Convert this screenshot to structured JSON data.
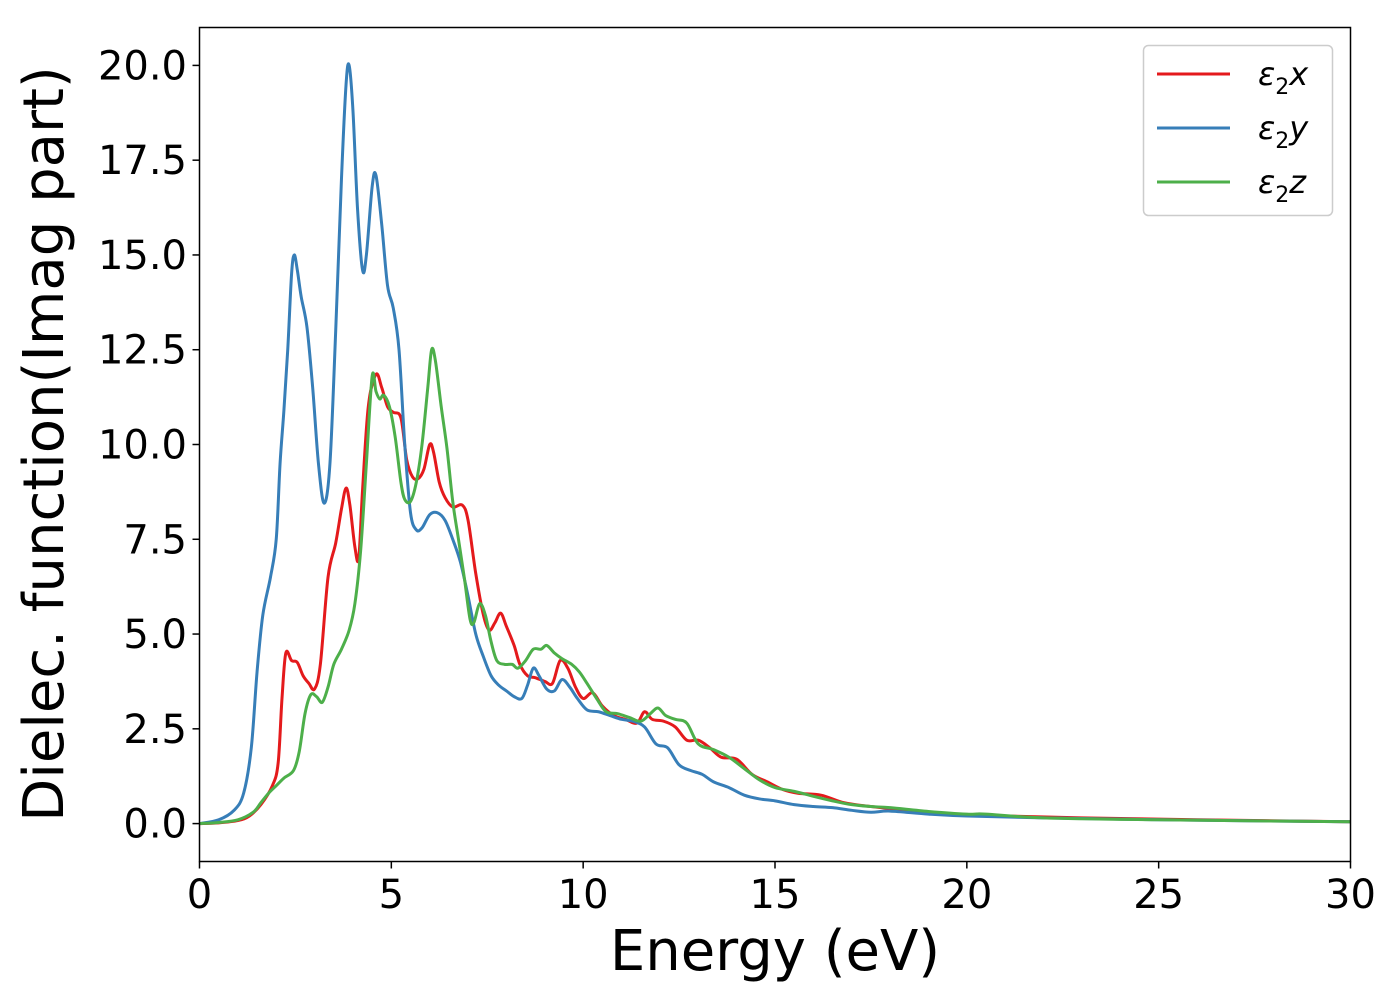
{
  "chart_data": {
    "type": "line",
    "xlabel": "Energy (eV)",
    "ylabel": "Dielec. function(Imag part)",
    "xlim": [
      0,
      30
    ],
    "ylim": [
      -1.0,
      21.0
    ],
    "xticks": [
      "0",
      "5",
      "10",
      "15",
      "20",
      "25",
      "30"
    ],
    "xtick_values": [
      0,
      5,
      10,
      15,
      20,
      25,
      30
    ],
    "yticks": [
      "0.0",
      "2.5",
      "5.0",
      "7.5",
      "10.0",
      "12.5",
      "15.0",
      "17.5",
      "20.0"
    ],
    "ytick_values": [
      0.0,
      2.5,
      5.0,
      7.5,
      10.0,
      12.5,
      15.0,
      17.5,
      20.0
    ],
    "grid": false,
    "legend_position": "top-right",
    "series": [
      {
        "name": "ε₂x",
        "legend_main": "ε",
        "legend_sub": "2",
        "legend_suffix": "x",
        "color": "#e41a1c",
        "points": [
          [
            0,
            0.0
          ],
          [
            0.5,
            0.02
          ],
          [
            1.0,
            0.08
          ],
          [
            1.3,
            0.2
          ],
          [
            1.6,
            0.5
          ],
          [
            1.9,
            1.0
          ],
          [
            2.05,
            1.6
          ],
          [
            2.15,
            3.3
          ],
          [
            2.25,
            4.5
          ],
          [
            2.4,
            4.3
          ],
          [
            2.55,
            4.25
          ],
          [
            2.7,
            3.9
          ],
          [
            2.85,
            3.7
          ],
          [
            3.0,
            3.55
          ],
          [
            3.15,
            4.2
          ],
          [
            3.35,
            6.5
          ],
          [
            3.55,
            7.4
          ],
          [
            3.7,
            8.3
          ],
          [
            3.82,
            8.85
          ],
          [
            3.92,
            8.4
          ],
          [
            4.05,
            7.3
          ],
          [
            4.15,
            7.0
          ],
          [
            4.25,
            8.8
          ],
          [
            4.4,
            11.0
          ],
          [
            4.6,
            11.85
          ],
          [
            4.75,
            11.5
          ],
          [
            4.9,
            11.0
          ],
          [
            5.05,
            10.85
          ],
          [
            5.25,
            10.7
          ],
          [
            5.4,
            9.6
          ],
          [
            5.55,
            9.15
          ],
          [
            5.7,
            9.1
          ],
          [
            5.85,
            9.35
          ],
          [
            6.0,
            10.0
          ],
          [
            6.1,
            9.8
          ],
          [
            6.25,
            9.0
          ],
          [
            6.4,
            8.6
          ],
          [
            6.6,
            8.35
          ],
          [
            6.85,
            8.4
          ],
          [
            7.0,
            8.0
          ],
          [
            7.2,
            6.6
          ],
          [
            7.4,
            5.5
          ],
          [
            7.55,
            5.1
          ],
          [
            7.7,
            5.3
          ],
          [
            7.85,
            5.55
          ],
          [
            8.0,
            5.2
          ],
          [
            8.2,
            4.7
          ],
          [
            8.35,
            4.2
          ],
          [
            8.55,
            3.9
          ],
          [
            8.75,
            3.85
          ],
          [
            9.0,
            3.75
          ],
          [
            9.2,
            3.7
          ],
          [
            9.4,
            4.3
          ],
          [
            9.6,
            4.1
          ],
          [
            9.8,
            3.6
          ],
          [
            10.0,
            3.3
          ],
          [
            10.25,
            3.45
          ],
          [
            10.5,
            3.1
          ],
          [
            10.8,
            2.85
          ],
          [
            11.1,
            2.75
          ],
          [
            11.4,
            2.65
          ],
          [
            11.6,
            2.95
          ],
          [
            11.8,
            2.75
          ],
          [
            12.1,
            2.7
          ],
          [
            12.4,
            2.55
          ],
          [
            12.7,
            2.2
          ],
          [
            13.0,
            2.2
          ],
          [
            13.3,
            2.0
          ],
          [
            13.6,
            1.75
          ],
          [
            14.0,
            1.7
          ],
          [
            14.4,
            1.3
          ],
          [
            14.8,
            1.1
          ],
          [
            15.2,
            0.9
          ],
          [
            15.6,
            0.8
          ],
          [
            16.2,
            0.75
          ],
          [
            16.8,
            0.55
          ],
          [
            17.5,
            0.45
          ],
          [
            18.5,
            0.35
          ],
          [
            19.5,
            0.25
          ],
          [
            21.0,
            0.2
          ],
          [
            23.0,
            0.15
          ],
          [
            26.0,
            0.1
          ],
          [
            30.0,
            0.05
          ]
        ]
      },
      {
        "name": "ε₂y",
        "legend_main": "ε",
        "legend_sub": "2",
        "legend_suffix": "y",
        "color": "#377eb8",
        "points": [
          [
            0,
            0.0
          ],
          [
            0.5,
            0.1
          ],
          [
            0.9,
            0.35
          ],
          [
            1.15,
            0.8
          ],
          [
            1.35,
            2.0
          ],
          [
            1.5,
            4.0
          ],
          [
            1.65,
            5.5
          ],
          [
            1.85,
            6.5
          ],
          [
            2.0,
            7.5
          ],
          [
            2.1,
            9.5
          ],
          [
            2.2,
            10.9
          ],
          [
            2.3,
            12.5
          ],
          [
            2.4,
            14.5
          ],
          [
            2.47,
            15.0
          ],
          [
            2.55,
            14.6
          ],
          [
            2.65,
            13.9
          ],
          [
            2.8,
            13.1
          ],
          [
            2.95,
            11.5
          ],
          [
            3.1,
            9.5
          ],
          [
            3.25,
            8.45
          ],
          [
            3.4,
            9.5
          ],
          [
            3.55,
            13.0
          ],
          [
            3.7,
            17.0
          ],
          [
            3.82,
            19.5
          ],
          [
            3.9,
            20.0
          ],
          [
            4.0,
            18.8
          ],
          [
            4.12,
            16.2
          ],
          [
            4.25,
            14.6
          ],
          [
            4.35,
            15.0
          ],
          [
            4.5,
            16.8
          ],
          [
            4.6,
            17.1
          ],
          [
            4.75,
            15.8
          ],
          [
            4.9,
            14.2
          ],
          [
            5.05,
            13.6
          ],
          [
            5.2,
            12.5
          ],
          [
            5.35,
            10.0
          ],
          [
            5.5,
            8.2
          ],
          [
            5.65,
            7.75
          ],
          [
            5.8,
            7.8
          ],
          [
            6.0,
            8.15
          ],
          [
            6.2,
            8.2
          ],
          [
            6.4,
            8.0
          ],
          [
            6.6,
            7.5
          ],
          [
            6.8,
            6.9
          ],
          [
            7.0,
            6.0
          ],
          [
            7.2,
            5.0
          ],
          [
            7.4,
            4.4
          ],
          [
            7.6,
            3.9
          ],
          [
            7.8,
            3.65
          ],
          [
            8.0,
            3.5
          ],
          [
            8.2,
            3.35
          ],
          [
            8.4,
            3.3
          ],
          [
            8.55,
            3.65
          ],
          [
            8.7,
            4.1
          ],
          [
            8.85,
            3.9
          ],
          [
            9.05,
            3.55
          ],
          [
            9.25,
            3.5
          ],
          [
            9.45,
            3.8
          ],
          [
            9.65,
            3.6
          ],
          [
            9.85,
            3.3
          ],
          [
            10.1,
            3.0
          ],
          [
            10.4,
            2.95
          ],
          [
            10.7,
            2.85
          ],
          [
            11.0,
            2.75
          ],
          [
            11.3,
            2.7
          ],
          [
            11.6,
            2.55
          ],
          [
            11.9,
            2.1
          ],
          [
            12.2,
            2.0
          ],
          [
            12.5,
            1.55
          ],
          [
            12.8,
            1.4
          ],
          [
            13.1,
            1.3
          ],
          [
            13.4,
            1.1
          ],
          [
            13.8,
            0.95
          ],
          [
            14.2,
            0.75
          ],
          [
            14.6,
            0.65
          ],
          [
            15.0,
            0.6
          ],
          [
            15.5,
            0.5
          ],
          [
            16.0,
            0.45
          ],
          [
            16.5,
            0.42
          ],
          [
            17.0,
            0.35
          ],
          [
            17.5,
            0.3
          ],
          [
            18.0,
            0.33
          ],
          [
            19.0,
            0.25
          ],
          [
            20.0,
            0.2
          ],
          [
            22.0,
            0.15
          ],
          [
            25.0,
            0.1
          ],
          [
            30.0,
            0.05
          ]
        ]
      },
      {
        "name": "ε₂z",
        "legend_main": "ε",
        "legend_sub": "2",
        "legend_suffix": "z",
        "color": "#4daf4a",
        "points": [
          [
            0,
            0.0
          ],
          [
            0.5,
            0.03
          ],
          [
            1.0,
            0.1
          ],
          [
            1.4,
            0.3
          ],
          [
            1.6,
            0.55
          ],
          [
            1.8,
            0.8
          ],
          [
            2.0,
            1.0
          ],
          [
            2.2,
            1.2
          ],
          [
            2.45,
            1.4
          ],
          [
            2.6,
            1.9
          ],
          [
            2.75,
            2.9
          ],
          [
            2.9,
            3.4
          ],
          [
            3.05,
            3.35
          ],
          [
            3.2,
            3.2
          ],
          [
            3.35,
            3.6
          ],
          [
            3.5,
            4.2
          ],
          [
            3.7,
            4.6
          ],
          [
            3.9,
            5.1
          ],
          [
            4.05,
            5.8
          ],
          [
            4.2,
            7.2
          ],
          [
            4.35,
            9.5
          ],
          [
            4.5,
            11.8
          ],
          [
            4.6,
            11.4
          ],
          [
            4.7,
            11.2
          ],
          [
            4.8,
            11.3
          ],
          [
            4.95,
            11.0
          ],
          [
            5.1,
            10.2
          ],
          [
            5.25,
            9.0
          ],
          [
            5.35,
            8.55
          ],
          [
            5.5,
            8.5
          ],
          [
            5.65,
            9.0
          ],
          [
            5.8,
            10.0
          ],
          [
            5.95,
            11.5
          ],
          [
            6.05,
            12.5
          ],
          [
            6.15,
            12.2
          ],
          [
            6.3,
            11.0
          ],
          [
            6.45,
            9.9
          ],
          [
            6.6,
            8.5
          ],
          [
            6.75,
            7.5
          ],
          [
            6.9,
            6.5
          ],
          [
            7.05,
            5.4
          ],
          [
            7.15,
            5.3
          ],
          [
            7.3,
            5.8
          ],
          [
            7.45,
            5.5
          ],
          [
            7.6,
            4.8
          ],
          [
            7.75,
            4.3
          ],
          [
            7.95,
            4.2
          ],
          [
            8.15,
            4.2
          ],
          [
            8.3,
            4.1
          ],
          [
            8.5,
            4.3
          ],
          [
            8.7,
            4.6
          ],
          [
            8.9,
            4.6
          ],
          [
            9.05,
            4.7
          ],
          [
            9.25,
            4.5
          ],
          [
            9.45,
            4.35
          ],
          [
            9.7,
            4.2
          ],
          [
            9.9,
            4.0
          ],
          [
            10.1,
            3.7
          ],
          [
            10.35,
            3.3
          ],
          [
            10.6,
            2.95
          ],
          [
            10.9,
            2.9
          ],
          [
            11.2,
            2.8
          ],
          [
            11.5,
            2.7
          ],
          [
            11.75,
            2.9
          ],
          [
            11.95,
            3.05
          ],
          [
            12.15,
            2.85
          ],
          [
            12.4,
            2.75
          ],
          [
            12.7,
            2.65
          ],
          [
            13.0,
            2.1
          ],
          [
            13.4,
            1.95
          ],
          [
            13.8,
            1.75
          ],
          [
            14.2,
            1.45
          ],
          [
            14.6,
            1.15
          ],
          [
            15.0,
            0.95
          ],
          [
            15.5,
            0.85
          ],
          [
            16.0,
            0.72
          ],
          [
            16.5,
            0.6
          ],
          [
            17.0,
            0.5
          ],
          [
            17.5,
            0.45
          ],
          [
            18.0,
            0.42
          ],
          [
            19.0,
            0.32
          ],
          [
            20.0,
            0.25
          ],
          [
            20.5,
            0.25
          ],
          [
            22.0,
            0.15
          ],
          [
            25.0,
            0.1
          ],
          [
            30.0,
            0.05
          ]
        ]
      }
    ]
  }
}
